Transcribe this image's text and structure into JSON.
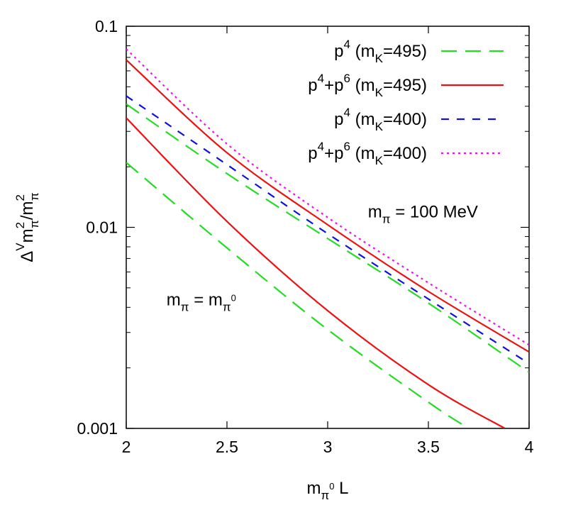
{
  "chart_data": {
    "type": "line",
    "xlabel": {
      "base": "m",
      "sub": "π",
      "sup": "0",
      "tail": " L"
    },
    "ylabel": {
      "pre": "Δ",
      "sup_v": "V",
      "num": "m",
      "num_sup": "2",
      "num_sub": "π",
      "slash": "/m",
      "den_sup": "2",
      "den_sub": "π"
    },
    "xlim": [
      2,
      4
    ],
    "ylim": [
      0.001,
      0.1
    ],
    "yscale": "log",
    "grid": false,
    "legend_position": "top-right",
    "x_ticks": [
      {
        "value": 2,
        "label": "2"
      },
      {
        "value": 2.5,
        "label": "2.5"
      },
      {
        "value": 3,
        "label": "3"
      },
      {
        "value": 3.5,
        "label": "3.5"
      },
      {
        "value": 4,
        "label": "4"
      }
    ],
    "y_ticks": [
      {
        "value": 0.001,
        "label": "0.001"
      },
      {
        "value": 0.01,
        "label": "0.01"
      },
      {
        "value": 0.1,
        "label": "0.1"
      }
    ],
    "series": [
      {
        "legend": {
          "p": "p",
          "sup1": "4",
          "plus": "",
          "sup2": "",
          "mk": " (m",
          "ksub": "K",
          "val": "=495)"
        },
        "color": "#22dd22",
        "dash": "long-dash",
        "group": "m_pi=100",
        "x": [
          2.0,
          2.5,
          3.0,
          3.5,
          4.0
        ],
        "y": [
          0.041,
          0.0185,
          0.0088,
          0.0042,
          0.0019
        ]
      },
      {
        "legend": {
          "p": "p",
          "sup1": "4",
          "plus": "+p",
          "sup2": "6",
          "mk": " (m",
          "ksub": "K",
          "val": "=495)"
        },
        "color": "#ee1111",
        "dash": "solid",
        "group": "m_pi=100",
        "x": [
          2.0,
          2.5,
          3.0,
          3.5,
          4.0
        ],
        "y": [
          0.068,
          0.0235,
          0.0103,
          0.0048,
          0.0024
        ]
      },
      {
        "legend": {
          "p": "p",
          "sup1": "4",
          "plus": "",
          "sup2": "",
          "mk": " (m",
          "ksub": "K",
          "val": "=400)"
        },
        "color": "#1111dd",
        "dash": "short-dash",
        "group": "m_pi=100",
        "x": [
          2.0,
          2.5,
          3.0,
          3.5,
          4.0
        ],
        "y": [
          0.045,
          0.0205,
          0.0093,
          0.0044,
          0.0021
        ]
      },
      {
        "legend": {
          "p": "p",
          "sup1": "4",
          "plus": "+p",
          "sup2": "6",
          "mk": " (m",
          "ksub": "K",
          "val": "=400)"
        },
        "color": "#ee11ee",
        "dash": "dotted",
        "group": "m_pi=100",
        "x": [
          2.0,
          2.5,
          3.0,
          3.5,
          4.0
        ],
        "y": [
          0.077,
          0.026,
          0.0112,
          0.0053,
          0.0026
        ]
      },
      {
        "legend": null,
        "color": "#22dd22",
        "dash": "long-dash",
        "group": "m_pi=m_pi0",
        "x": [
          2.0,
          2.5,
          3.0,
          3.5,
          3.7
        ],
        "y": [
          0.021,
          0.0079,
          0.0031,
          0.00135,
          0.001
        ]
      },
      {
        "legend": null,
        "color": "#ee1111",
        "dash": "solid",
        "group": "m_pi=m_pi0",
        "x": [
          2.0,
          2.5,
          3.0,
          3.5,
          3.88
        ],
        "y": [
          0.035,
          0.0107,
          0.00385,
          0.00165,
          0.001
        ]
      }
    ],
    "annotations": [
      {
        "id": "heavy",
        "base": "m",
        "sub": "π",
        "text": " = 100 MeV",
        "x": 3.2,
        "y": 0.0112
      },
      {
        "id": "light",
        "base": "m",
        "sub": "π",
        "text": " = m",
        "sub2": "π",
        "sup2": "0",
        "x": 2.2,
        "y": 0.0041
      }
    ]
  }
}
